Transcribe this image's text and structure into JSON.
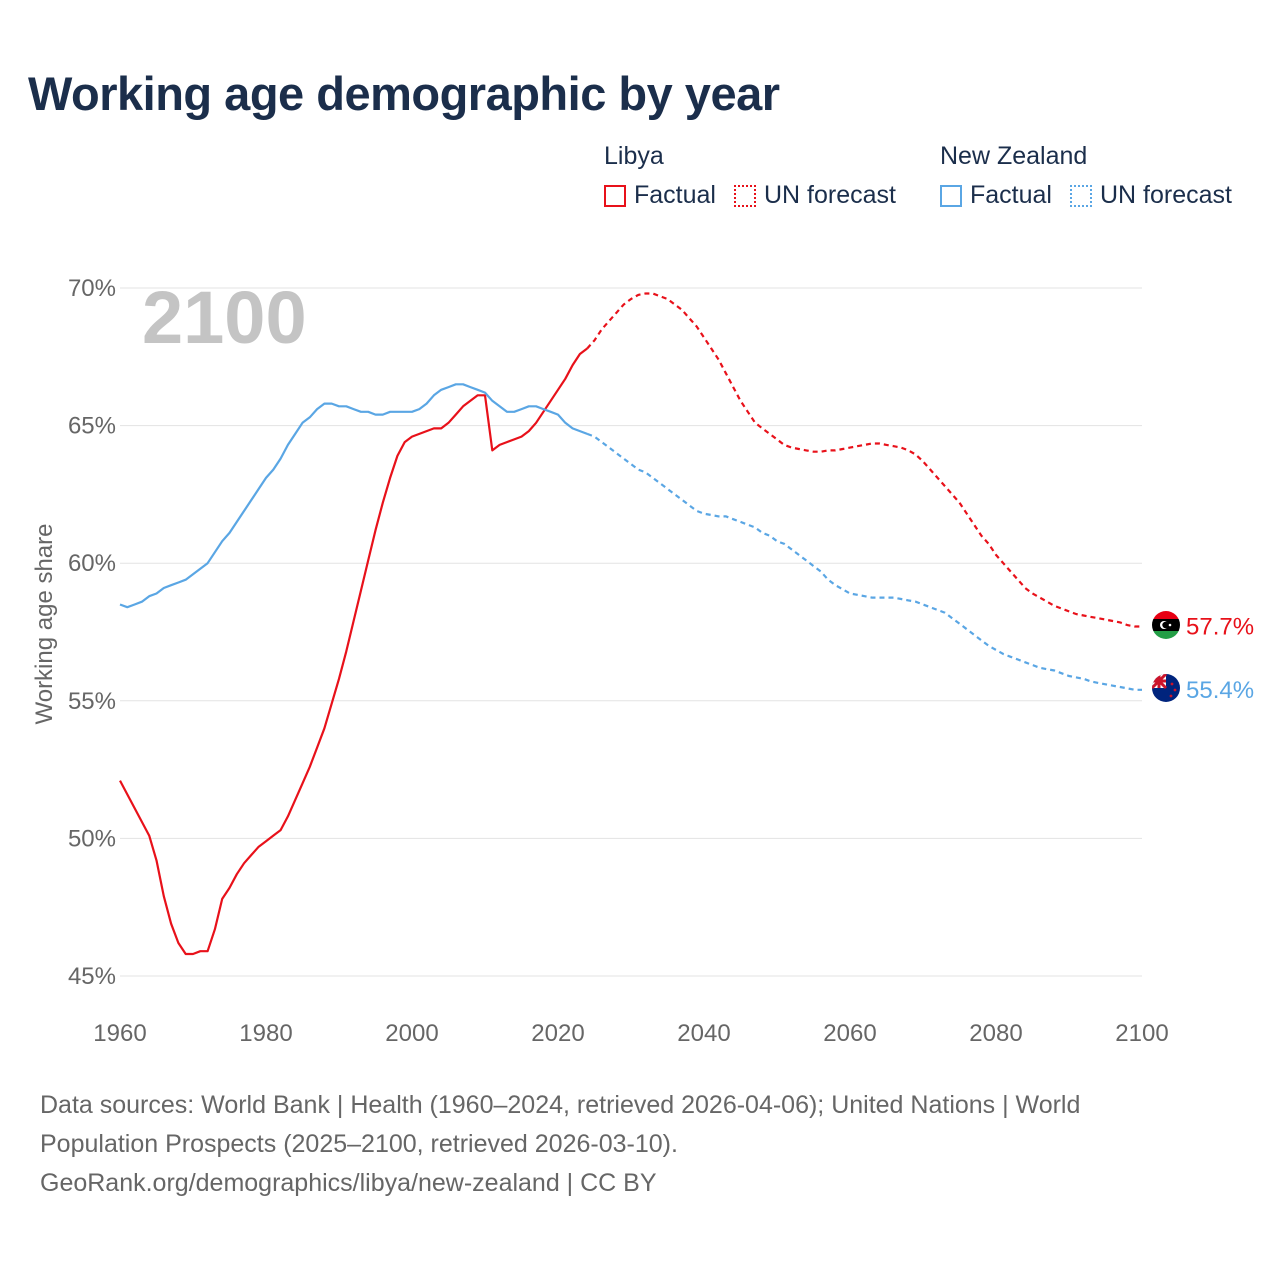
{
  "title": "Working age demographic by year",
  "legend": [
    {
      "name": "Libya",
      "color": "#e8111a",
      "factual_label": "Factual",
      "forecast_label": "UN forecast"
    },
    {
      "name": "New Zealand",
      "color": "#5aa6e4",
      "factual_label": "Factual",
      "forecast_label": "UN forecast"
    }
  ],
  "chart_data": {
    "type": "line",
    "title": "Working age demographic by year",
    "year_watermark": "2100",
    "xlabel": "",
    "ylabel": "Working age share",
    "xlim": [
      1960,
      2100
    ],
    "ylim": [
      45,
      70
    ],
    "x_ticks": [
      1960,
      1980,
      2000,
      2020,
      2040,
      2060,
      2080,
      2100
    ],
    "y_ticks": [
      45,
      50,
      55,
      60,
      65,
      70
    ],
    "y_tick_labels": [
      "45%",
      "50%",
      "55%",
      "60%",
      "65%",
      "70%"
    ],
    "grid": true,
    "factual_end_year": 2024,
    "series": [
      {
        "name": "Libya",
        "color": "#e8111a",
        "end_label": "57.7%",
        "flag": "libya-flag",
        "factual": [
          [
            1960,
            52.1
          ],
          [
            1962,
            51.1
          ],
          [
            1964,
            50.1
          ],
          [
            1965,
            49.2
          ],
          [
            1966,
            47.9
          ],
          [
            1967,
            46.9
          ],
          [
            1968,
            46.2
          ],
          [
            1969,
            45.8
          ],
          [
            1970,
            45.8
          ],
          [
            1971,
            45.9
          ],
          [
            1972,
            45.9
          ],
          [
            1973,
            46.7
          ],
          [
            1974,
            47.8
          ],
          [
            1975,
            48.2
          ],
          [
            1976,
            48.7
          ],
          [
            1977,
            49.1
          ],
          [
            1978,
            49.4
          ],
          [
            1979,
            49.7
          ],
          [
            1980,
            49.9
          ],
          [
            1981,
            50.1
          ],
          [
            1982,
            50.3
          ],
          [
            1983,
            50.8
          ],
          [
            1984,
            51.4
          ],
          [
            1985,
            52.0
          ],
          [
            1986,
            52.6
          ],
          [
            1987,
            53.3
          ],
          [
            1988,
            54.0
          ],
          [
            1989,
            54.9
          ],
          [
            1990,
            55.8
          ],
          [
            1991,
            56.8
          ],
          [
            1992,
            57.9
          ],
          [
            1993,
            59.0
          ],
          [
            1994,
            60.1
          ],
          [
            1995,
            61.2
          ],
          [
            1996,
            62.2
          ],
          [
            1997,
            63.1
          ],
          [
            1998,
            63.9
          ],
          [
            1999,
            64.4
          ],
          [
            2000,
            64.6
          ],
          [
            2001,
            64.7
          ],
          [
            2002,
            64.8
          ],
          [
            2003,
            64.9
          ],
          [
            2004,
            64.9
          ],
          [
            2005,
            65.1
          ],
          [
            2006,
            65.4
          ],
          [
            2007,
            65.7
          ],
          [
            2008,
            65.9
          ],
          [
            2009,
            66.1
          ],
          [
            2010,
            66.1
          ],
          [
            2011,
            64.1
          ],
          [
            2012,
            64.3
          ],
          [
            2013,
            64.4
          ],
          [
            2014,
            64.5
          ],
          [
            2015,
            64.6
          ],
          [
            2016,
            64.8
          ],
          [
            2017,
            65.1
          ],
          [
            2018,
            65.5
          ],
          [
            2019,
            65.9
          ],
          [
            2020,
            66.3
          ],
          [
            2021,
            66.7
          ],
          [
            2022,
            67.2
          ],
          [
            2023,
            67.6
          ],
          [
            2024,
            67.8
          ]
        ],
        "forecast": [
          [
            2024,
            67.8
          ],
          [
            2025,
            68.1
          ],
          [
            2026,
            68.5
          ],
          [
            2027,
            68.8
          ],
          [
            2028,
            69.1
          ],
          [
            2029,
            69.4
          ],
          [
            2030,
            69.6
          ],
          [
            2031,
            69.75
          ],
          [
            2032,
            69.8
          ],
          [
            2033,
            69.8
          ],
          [
            2034,
            69.7
          ],
          [
            2035,
            69.6
          ],
          [
            2036,
            69.4
          ],
          [
            2037,
            69.2
          ],
          [
            2038,
            68.9
          ],
          [
            2039,
            68.6
          ],
          [
            2040,
            68.2
          ],
          [
            2041,
            67.8
          ],
          [
            2042,
            67.4
          ],
          [
            2043,
            66.9
          ],
          [
            2044,
            66.4
          ],
          [
            2045,
            65.9
          ],
          [
            2046,
            65.5
          ],
          [
            2047,
            65.1
          ],
          [
            2048,
            64.9
          ],
          [
            2049,
            64.7
          ],
          [
            2050,
            64.5
          ],
          [
            2051,
            64.3
          ],
          [
            2052,
            64.2
          ],
          [
            2053,
            64.15
          ],
          [
            2054,
            64.1
          ],
          [
            2055,
            64.05
          ],
          [
            2056,
            64.05
          ],
          [
            2057,
            64.1
          ],
          [
            2058,
            64.1
          ],
          [
            2059,
            64.15
          ],
          [
            2060,
            64.2
          ],
          [
            2061,
            64.25
          ],
          [
            2062,
            64.3
          ],
          [
            2063,
            64.35
          ],
          [
            2064,
            64.35
          ],
          [
            2065,
            64.3
          ],
          [
            2066,
            64.25
          ],
          [
            2067,
            64.2
          ],
          [
            2068,
            64.1
          ],
          [
            2069,
            63.95
          ],
          [
            2070,
            63.7
          ],
          [
            2071,
            63.4
          ],
          [
            2072,
            63.1
          ],
          [
            2073,
            62.8
          ],
          [
            2074,
            62.5
          ],
          [
            2075,
            62.2
          ],
          [
            2076,
            61.8
          ],
          [
            2077,
            61.4
          ],
          [
            2078,
            61.0
          ],
          [
            2079,
            60.7
          ],
          [
            2080,
            60.3
          ],
          [
            2081,
            60.0
          ],
          [
            2082,
            59.7
          ],
          [
            2083,
            59.4
          ],
          [
            2084,
            59.1
          ],
          [
            2085,
            58.9
          ],
          [
            2086,
            58.75
          ],
          [
            2087,
            58.6
          ],
          [
            2088,
            58.45
          ],
          [
            2089,
            58.35
          ],
          [
            2090,
            58.25
          ],
          [
            2091,
            58.15
          ],
          [
            2092,
            58.1
          ],
          [
            2093,
            58.05
          ],
          [
            2094,
            58.0
          ],
          [
            2095,
            57.95
          ],
          [
            2096,
            57.9
          ],
          [
            2097,
            57.85
          ],
          [
            2098,
            57.75
          ],
          [
            2099,
            57.7
          ],
          [
            2100,
            57.7
          ]
        ]
      },
      {
        "name": "New Zealand",
        "color": "#5aa6e4",
        "end_label": "55.4%",
        "flag": "new-zealand-flag",
        "factual": [
          [
            1960,
            58.5
          ],
          [
            1961,
            58.4
          ],
          [
            1962,
            58.5
          ],
          [
            1963,
            58.6
          ],
          [
            1964,
            58.8
          ],
          [
            1965,
            58.9
          ],
          [
            1966,
            59.1
          ],
          [
            1967,
            59.2
          ],
          [
            1968,
            59.3
          ],
          [
            1969,
            59.4
          ],
          [
            1970,
            59.6
          ],
          [
            1971,
            59.8
          ],
          [
            1972,
            60.0
          ],
          [
            1973,
            60.4
          ],
          [
            1974,
            60.8
          ],
          [
            1975,
            61.1
          ],
          [
            1976,
            61.5
          ],
          [
            1977,
            61.9
          ],
          [
            1978,
            62.3
          ],
          [
            1979,
            62.7
          ],
          [
            1980,
            63.1
          ],
          [
            1981,
            63.4
          ],
          [
            1982,
            63.8
          ],
          [
            1983,
            64.3
          ],
          [
            1984,
            64.7
          ],
          [
            1985,
            65.1
          ],
          [
            1986,
            65.3
          ],
          [
            1987,
            65.6
          ],
          [
            1988,
            65.8
          ],
          [
            1989,
            65.8
          ],
          [
            1990,
            65.7
          ],
          [
            1991,
            65.7
          ],
          [
            1992,
            65.6
          ],
          [
            1993,
            65.5
          ],
          [
            1994,
            65.5
          ],
          [
            1995,
            65.4
          ],
          [
            1996,
            65.4
          ],
          [
            1997,
            65.5
          ],
          [
            1998,
            65.5
          ],
          [
            1999,
            65.5
          ],
          [
            2000,
            65.5
          ],
          [
            2001,
            65.6
          ],
          [
            2002,
            65.8
          ],
          [
            2003,
            66.1
          ],
          [
            2004,
            66.3
          ],
          [
            2005,
            66.4
          ],
          [
            2006,
            66.5
          ],
          [
            2007,
            66.5
          ],
          [
            2008,
            66.4
          ],
          [
            2009,
            66.3
          ],
          [
            2010,
            66.2
          ],
          [
            2011,
            65.9
          ],
          [
            2012,
            65.7
          ],
          [
            2013,
            65.5
          ],
          [
            2014,
            65.5
          ],
          [
            2015,
            65.6
          ],
          [
            2016,
            65.7
          ],
          [
            2017,
            65.7
          ],
          [
            2018,
            65.6
          ],
          [
            2019,
            65.5
          ],
          [
            2020,
            65.4
          ],
          [
            2021,
            65.1
          ],
          [
            2022,
            64.9
          ],
          [
            2023,
            64.8
          ],
          [
            2024,
            64.7
          ]
        ],
        "forecast": [
          [
            2024,
            64.7
          ],
          [
            2025,
            64.6
          ],
          [
            2026,
            64.4
          ],
          [
            2027,
            64.2
          ],
          [
            2028,
            64.0
          ],
          [
            2029,
            63.8
          ],
          [
            2030,
            63.6
          ],
          [
            2031,
            63.4
          ],
          [
            2032,
            63.3
          ],
          [
            2033,
            63.1
          ],
          [
            2034,
            62.9
          ],
          [
            2035,
            62.7
          ],
          [
            2036,
            62.5
          ],
          [
            2037,
            62.3
          ],
          [
            2038,
            62.1
          ],
          [
            2039,
            61.9
          ],
          [
            2040,
            61.8
          ],
          [
            2041,
            61.75
          ],
          [
            2042,
            61.7
          ],
          [
            2043,
            61.7
          ],
          [
            2044,
            61.6
          ],
          [
            2045,
            61.5
          ],
          [
            2046,
            61.4
          ],
          [
            2047,
            61.3
          ],
          [
            2048,
            61.1
          ],
          [
            2049,
            61.0
          ],
          [
            2050,
            60.8
          ],
          [
            2051,
            60.7
          ],
          [
            2052,
            60.5
          ],
          [
            2053,
            60.3
          ],
          [
            2054,
            60.1
          ],
          [
            2055,
            59.9
          ],
          [
            2056,
            59.7
          ],
          [
            2057,
            59.4
          ],
          [
            2058,
            59.2
          ],
          [
            2059,
            59.05
          ],
          [
            2060,
            58.9
          ],
          [
            2061,
            58.85
          ],
          [
            2062,
            58.8
          ],
          [
            2063,
            58.75
          ],
          [
            2064,
            58.75
          ],
          [
            2065,
            58.75
          ],
          [
            2066,
            58.75
          ],
          [
            2067,
            58.7
          ],
          [
            2068,
            58.65
          ],
          [
            2069,
            58.6
          ],
          [
            2070,
            58.5
          ],
          [
            2071,
            58.4
          ],
          [
            2072,
            58.3
          ],
          [
            2073,
            58.2
          ],
          [
            2074,
            58.0
          ],
          [
            2075,
            57.8
          ],
          [
            2076,
            57.6
          ],
          [
            2077,
            57.4
          ],
          [
            2078,
            57.2
          ],
          [
            2079,
            57.0
          ],
          [
            2080,
            56.85
          ],
          [
            2081,
            56.7
          ],
          [
            2082,
            56.6
          ],
          [
            2083,
            56.5
          ],
          [
            2084,
            56.4
          ],
          [
            2085,
            56.3
          ],
          [
            2086,
            56.2
          ],
          [
            2087,
            56.15
          ],
          [
            2088,
            56.1
          ],
          [
            2089,
            56.0
          ],
          [
            2090,
            55.9
          ],
          [
            2091,
            55.85
          ],
          [
            2092,
            55.8
          ],
          [
            2093,
            55.7
          ],
          [
            2094,
            55.65
          ],
          [
            2095,
            55.6
          ],
          [
            2096,
            55.55
          ],
          [
            2097,
            55.5
          ],
          [
            2098,
            55.45
          ],
          [
            2099,
            55.4
          ],
          [
            2100,
            55.4
          ]
        ]
      }
    ]
  },
  "footer": {
    "sources": "Data sources: World Bank | Health (1960–2024, retrieved 2026-04-06); United Nations | World Population Prospects (2025–2100, retrieved 2026-03-10).",
    "attribution": "GeoRank.org/demographics/libya/new-zealand | CC BY"
  }
}
